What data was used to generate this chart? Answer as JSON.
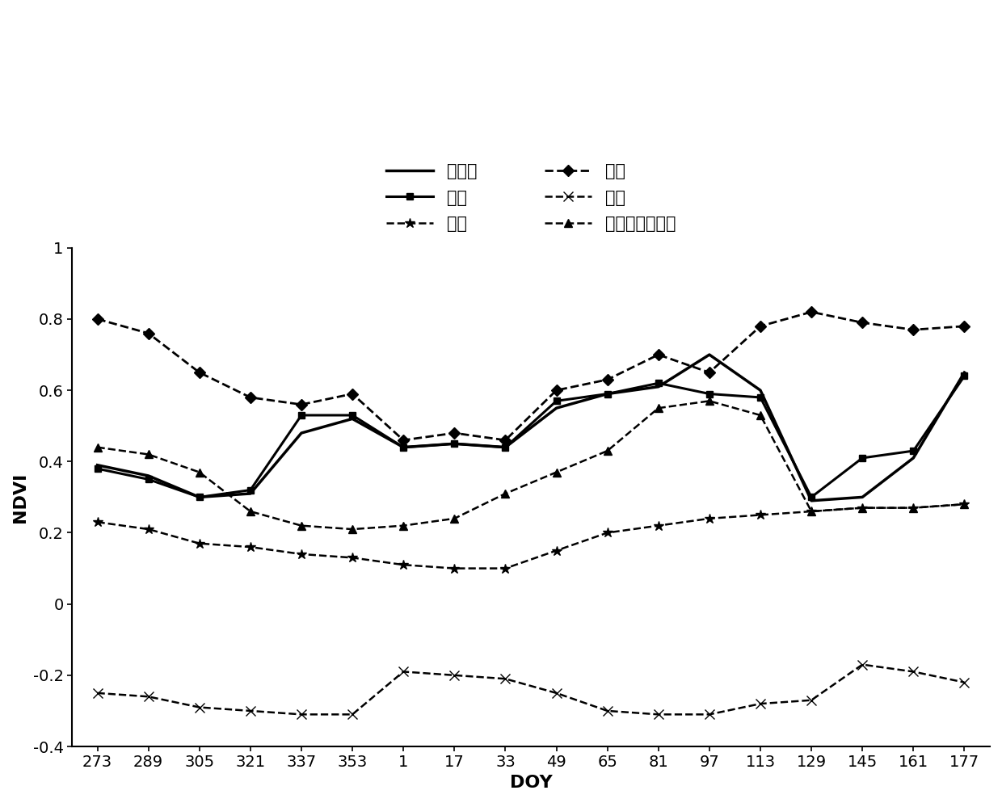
{
  "x_labels": [
    "273",
    "289",
    "305",
    "321",
    "337",
    "353",
    "1",
    "17",
    "33",
    "49",
    "65",
    "81",
    "97",
    "113",
    "129",
    "145",
    "161",
    "177"
  ],
  "x_values": [
    0,
    1,
    2,
    3,
    4,
    5,
    6,
    7,
    8,
    9,
    10,
    11,
    12,
    13,
    14,
    15,
    16,
    17
  ],
  "series": {
    "dongxiaomai": {
      "label": "冬小麦",
      "values": [
        0.39,
        0.36,
        0.3,
        0.31,
        0.48,
        0.52,
        0.44,
        0.45,
        0.44,
        0.55,
        0.59,
        0.61,
        0.7,
        0.6,
        0.29,
        0.3,
        0.41,
        0.65
      ],
      "linestyle": "-",
      "marker": null,
      "linewidth": 2.5,
      "markersize": 0
    },
    "youcai": {
      "label": "油菜",
      "values": [
        0.38,
        0.35,
        0.3,
        0.32,
        0.53,
        0.53,
        0.44,
        0.45,
        0.44,
        0.57,
        0.59,
        0.62,
        0.59,
        0.58,
        0.3,
        0.41,
        0.43,
        0.64
      ],
      "linestyle": "-",
      "marker": "s",
      "linewidth": 2.2,
      "markersize": 6
    },
    "chengzhen": {
      "label": "城镇",
      "values": [
        0.23,
        0.21,
        0.17,
        0.16,
        0.14,
        0.13,
        0.11,
        0.1,
        0.1,
        0.15,
        0.2,
        0.22,
        0.24,
        0.25,
        0.26,
        0.27,
        0.27,
        0.28
      ],
      "linestyle": "--",
      "marker": "*",
      "linewidth": 1.8,
      "markersize": 9
    },
    "lindi": {
      "label": "林地",
      "values": [
        0.8,
        0.76,
        0.65,
        0.58,
        0.56,
        0.59,
        0.46,
        0.48,
        0.46,
        0.6,
        0.63,
        0.7,
        0.65,
        0.78,
        0.82,
        0.79,
        0.77,
        0.78
      ],
      "linestyle": "--",
      "marker": "D",
      "linewidth": 2.0,
      "markersize": 7
    },
    "shuiti": {
      "label": "水体",
      "values": [
        -0.25,
        -0.26,
        -0.29,
        -0.3,
        -0.31,
        -0.31,
        -0.19,
        -0.2,
        -0.21,
        -0.25,
        -0.3,
        -0.31,
        -0.31,
        -0.28,
        -0.27,
        -0.17,
        -0.19,
        -0.22
      ],
      "linestyle": "--",
      "marker": "x",
      "linewidth": 1.8,
      "markersize": 8
    },
    "dongji": {
      "label": "冬季未种植耕地",
      "values": [
        0.44,
        0.42,
        0.37,
        0.26,
        0.22,
        0.21,
        0.22,
        0.24,
        0.31,
        0.37,
        0.43,
        0.55,
        0.57,
        0.53,
        0.26,
        0.27,
        0.27,
        0.28
      ],
      "linestyle": "--",
      "marker": "^",
      "linewidth": 1.8,
      "markersize": 7
    }
  },
  "ylim": [
    -0.4,
    1.0
  ],
  "yticks": [
    -0.4,
    -0.2,
    0,
    0.2,
    0.4,
    0.6,
    0.8,
    1
  ],
  "ylabel": "NDVI",
  "xlabel": "DOY",
  "background_color": "#ffffff"
}
